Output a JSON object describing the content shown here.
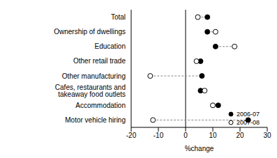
{
  "chart_data": {
    "type": "scatter",
    "orientation": "horizontal",
    "x_label": "%change",
    "categories": [
      "Motor vehicle hiring",
      "Accommodation",
      "Cafes, restaurants and takeaway food outlets",
      "Other manufacturing",
      "Other retail trade",
      "Education",
      "Ownership of dwellings",
      "Total"
    ],
    "series": [
      {
        "name": "2006-07",
        "color": "#000000",
        "marker": "filled",
        "values": [
          23,
          12,
          5.5,
          6,
          5.5,
          11,
          8,
          8
        ]
      },
      {
        "name": "2007-08",
        "color": "#000000",
        "marker": "open",
        "values": [
          -12,
          10,
          7,
          -13,
          4,
          18,
          11,
          4.5
        ]
      }
    ],
    "xlim": [
      -20,
      30
    ],
    "xticks": [
      -20,
      -10,
      0,
      10,
      20,
      30
    ],
    "legend": "lower right",
    "grid": false
  }
}
